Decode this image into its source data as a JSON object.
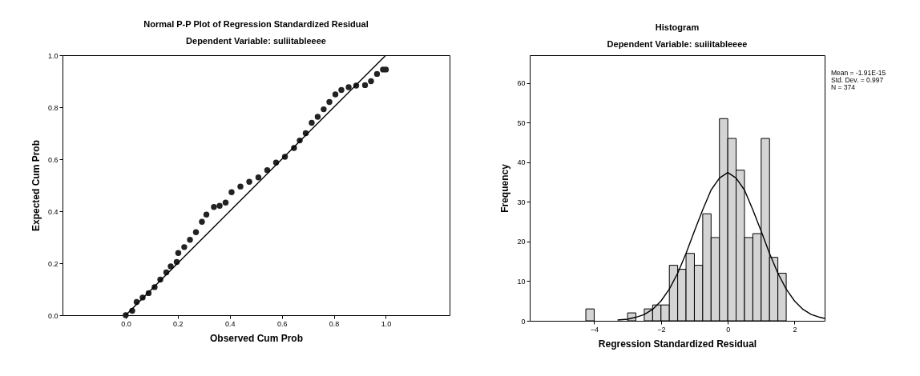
{
  "chart_data": [
    {
      "type": "scatter",
      "title": "Normal P-P Plot of Regression Standardized Residual",
      "subtitle": "Dependent Variable: suliitableeee",
      "xlabel": "Observed Cum Prob",
      "ylabel": "Expected Cum Prob",
      "xlim": [
        -0.243,
        1.245
      ],
      "ylim": [
        0,
        1
      ],
      "xticks": [
        {
          "value": 0,
          "label": "0.0"
        },
        {
          "value": 0.2,
          "label": "0.2"
        },
        {
          "value": 0.4,
          "label": "0.4"
        },
        {
          "value": 0.6,
          "label": "0.6"
        },
        {
          "value": 0.8,
          "label": "0.8"
        },
        {
          "value": 1,
          "label": "1.0"
        }
      ],
      "yticks": [
        {
          "value": 0,
          "label": "0.0"
        },
        {
          "value": 0.2,
          "label": "0.2"
        },
        {
          "value": 0.4,
          "label": "0.4"
        },
        {
          "value": 0.6,
          "label": "0.6"
        },
        {
          "value": 0.8,
          "label": "0.8"
        },
        {
          "value": 1,
          "label": "1.0"
        }
      ],
      "grid": false,
      "series": [
        {
          "type": "scatter",
          "marker": "circle",
          "color": "#222222",
          "x": [
            0,
            0.025,
            0.042,
            0.065,
            0.088,
            0.111,
            0.133,
            0.156,
            0.173,
            0.196,
            0.202,
            0.225,
            0.247,
            0.27,
            0.293,
            0.31,
            0.339,
            0.361,
            0.384,
            0.407,
            0.441,
            0.475,
            0.51,
            0.544,
            0.578,
            0.612,
            0.647,
            0.669,
            0.692,
            0.715,
            0.738,
            0.761,
            0.783,
            0.806,
            0.829,
            0.857,
            0.886,
            0.92,
            0.943,
            0.966,
            0.989,
            1
          ],
          "values": [
            0,
            0.017,
            0.051,
            0.068,
            0.085,
            0.108,
            0.137,
            0.165,
            0.188,
            0.205,
            0.239,
            0.262,
            0.29,
            0.319,
            0.359,
            0.387,
            0.416,
            0.421,
            0.433,
            0.473,
            0.495,
            0.513,
            0.53,
            0.558,
            0.587,
            0.609,
            0.643,
            0.672,
            0.7,
            0.74,
            0.763,
            0.792,
            0.82,
            0.849,
            0.866,
            0.877,
            0.883,
            0.885,
            0.9,
            0.928,
            0.945,
            0.945
          ]
        },
        {
          "type": "line",
          "color": "#000000",
          "x": [
            0,
            1
          ],
          "values": [
            0,
            1
          ]
        }
      ]
    },
    {
      "type": "histogram",
      "title": "Histogram",
      "subtitle": "Dependent Variable: suiiitableeee",
      "xlabel": "Regression Standardized Residual",
      "ylabel": "Frequency",
      "xlim": [
        -5.93,
        2.9
      ],
      "ylim": [
        0,
        67
      ],
      "xticks": [
        -4,
        -2,
        0,
        2
      ],
      "yticks": [
        0,
        10,
        20,
        30,
        40,
        50,
        60
      ],
      "grid": false,
      "color": "#d4d4d4",
      "bins": [
        -4.25,
        -4,
        -3.75,
        -3.5,
        -3.25,
        -3,
        -2.75,
        -2.5,
        -2.25,
        -2,
        -1.75,
        -1.5,
        -1.25,
        -1,
        -0.75,
        -0.5,
        -0.25,
        0,
        0.25,
        0.5,
        0.75,
        1,
        1.25,
        1.5,
        1.75
      ],
      "values": [
        3,
        0,
        0,
        0,
        0,
        2,
        0,
        3,
        4,
        4,
        14,
        13,
        17,
        14,
        27,
        21,
        51,
        46,
        38,
        21,
        22,
        46,
        16,
        12
      ],
      "series": [
        {
          "type": "line",
          "color": "#000000",
          "x": [
            -3.3,
            -3,
            -2.75,
            -2.5,
            -2.25,
            -2,
            -1.75,
            -1.5,
            -1.25,
            -1,
            -0.75,
            -0.5,
            -0.25,
            0,
            0.25,
            0.5,
            0.75,
            1,
            1.25,
            1.5,
            1.75,
            2,
            2.25,
            2.5,
            2.75,
            2.9
          ],
          "values": [
            0.2,
            0.4,
            0.9,
            1.6,
            2.9,
            5,
            8,
            12,
            17,
            22.6,
            28,
            33,
            36,
            37.4,
            36,
            33,
            28,
            22.6,
            17,
            12,
            8,
            5,
            2.9,
            1.6,
            0.9,
            0.6
          ]
        }
      ],
      "annotations": [
        "Mean = -1.91E-15",
        "Std. Dev. = 0.997",
        "N = 374"
      ]
    }
  ]
}
